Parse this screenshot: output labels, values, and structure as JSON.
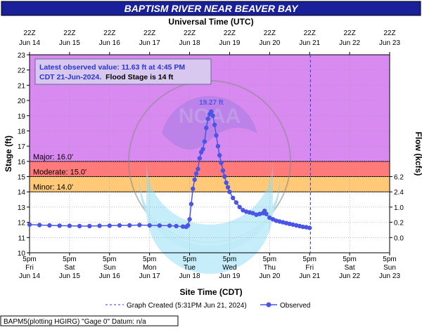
{
  "header": {
    "title": "BAPTISM RIVER NEAR BEAVER BAY",
    "subtitle": "Universal Time (UTC)"
  },
  "colors": {
    "title_bg": "#1a1f9a",
    "major": "#d88af0",
    "moderate": "#ff7a7a",
    "minor": "#ffc978",
    "observed": "#4a55e6",
    "created_line": "#3a3adc"
  },
  "info_box": {
    "line1": "Latest observed value: 11.63 ft at 4:45 PM",
    "line2a": "CDT 21-Jun-2024.",
    "line2b": "Flood Stage is 14 ft"
  },
  "legend": {
    "created": "Graph Created (5:31PM Jun 21, 2024)",
    "observed": "Observed"
  },
  "footer_note": "BAPM5(plotting HGIRG) \"Gage 0\" Datum: n/a",
  "chart_data": {
    "type": "line",
    "title": "BAPTISM RIVER NEAR BEAVER BAY",
    "xlabel": "Site Time (CDT)",
    "ylabel": "Stage (ft)",
    "y2label": "Flow (kcfs)",
    "top_xlabel": "Universal Time (UTC)",
    "ylim": [
      10,
      23
    ],
    "xlim_hours_from_jun14_5pm": [
      0,
      216
    ],
    "yticks": [
      "10",
      "11",
      "12",
      "13",
      "14",
      "15",
      "16",
      "17",
      "18",
      "19",
      "20",
      "21",
      "22",
      "23"
    ],
    "y2ticks": [
      {
        "stage": 11,
        "label": "0.0"
      },
      {
        "stage": 12,
        "label": "0.2"
      },
      {
        "stage": 13,
        "label": "1.0"
      },
      {
        "stage": 14,
        "label": "2.4"
      },
      {
        "stage": 15,
        "label": "6.2"
      }
    ],
    "bottom_ticks": [
      {
        "time": "5pm",
        "day": "Fri",
        "date": "Jun 14"
      },
      {
        "time": "5pm",
        "day": "Sat",
        "date": "Jun 15"
      },
      {
        "time": "5pm",
        "day": "Sun",
        "date": "Jun 16"
      },
      {
        "time": "5pm",
        "day": "Mon",
        "date": "Jun 17"
      },
      {
        "time": "5pm",
        "day": "Tue",
        "date": "Jun 18"
      },
      {
        "time": "5pm",
        "day": "Wed",
        "date": "Jun 19"
      },
      {
        "time": "5pm",
        "day": "Thu",
        "date": "Jun 20"
      },
      {
        "time": "5pm",
        "day": "Fri",
        "date": "Jun 21"
      },
      {
        "time": "5pm",
        "day": "Sat",
        "date": "Jun 22"
      },
      {
        "time": "5pm",
        "day": "Sun",
        "date": "Jun 23"
      }
    ],
    "top_ticks": [
      {
        "time": "22Z",
        "date": "Jun 14"
      },
      {
        "time": "22Z",
        "date": "Jun 15"
      },
      {
        "time": "22Z",
        "date": "Jun 16"
      },
      {
        "time": "22Z",
        "date": "Jun 17"
      },
      {
        "time": "22Z",
        "date": "Jun 18"
      },
      {
        "time": "22Z",
        "date": "Jun 19"
      },
      {
        "time": "22Z",
        "date": "Jun 20"
      },
      {
        "time": "22Z",
        "date": "Jun 21"
      },
      {
        "time": "22Z",
        "date": "Jun 22"
      },
      {
        "time": "22Z",
        "date": "Jun 23"
      }
    ],
    "flood_categories": [
      {
        "name": "Major",
        "label": "Major: 16.0'",
        "stage": 16.0
      },
      {
        "name": "Moderate",
        "label": "Moderate: 15.0'",
        "stage": 15.0
      },
      {
        "name": "Minor",
        "label": "Minor: 14.0'",
        "stage": 14.0
      }
    ],
    "peak_label": "19.27 ft",
    "graph_created_hours": 168.5,
    "series": [
      {
        "name": "Observed",
        "points": [
          [
            0,
            11.85
          ],
          [
            6,
            11.82
          ],
          [
            12,
            11.8
          ],
          [
            18,
            11.78
          ],
          [
            24,
            11.77
          ],
          [
            30,
            11.75
          ],
          [
            36,
            11.75
          ],
          [
            42,
            11.77
          ],
          [
            48,
            11.78
          ],
          [
            54,
            11.8
          ],
          [
            60,
            11.8
          ],
          [
            66,
            11.82
          ],
          [
            72,
            11.8
          ],
          [
            78,
            11.79
          ],
          [
            84,
            11.78
          ],
          [
            88,
            11.75
          ],
          [
            92,
            11.72
          ],
          [
            94,
            11.7
          ],
          [
            95,
            11.8
          ],
          [
            96,
            12.2
          ],
          [
            97,
            13.2
          ],
          [
            98,
            14.2
          ],
          [
            99,
            14.8
          ],
          [
            100,
            15.2
          ],
          [
            101,
            15.5
          ],
          [
            102,
            16.2
          ],
          [
            103,
            16.6
          ],
          [
            104,
            16.8
          ],
          [
            105,
            17.3
          ],
          [
            106,
            18.2
          ],
          [
            107,
            18.8
          ],
          [
            108,
            19.1
          ],
          [
            109,
            19.27
          ],
          [
            110,
            19.0
          ],
          [
            111,
            18.4
          ],
          [
            112,
            17.7
          ],
          [
            113,
            17.0
          ],
          [
            114,
            16.4
          ],
          [
            115,
            15.9
          ],
          [
            116,
            15.4
          ],
          [
            117,
            15.0
          ],
          [
            118,
            14.6
          ],
          [
            119,
            14.3
          ],
          [
            120,
            14.0
          ],
          [
            122,
            13.6
          ],
          [
            124,
            13.3
          ],
          [
            126,
            13.0
          ],
          [
            128,
            12.8
          ],
          [
            130,
            12.7
          ],
          [
            132,
            12.65
          ],
          [
            134,
            12.6
          ],
          [
            136,
            12.5
          ],
          [
            138,
            12.55
          ],
          [
            140,
            12.6
          ],
          [
            141,
            12.75
          ],
          [
            142,
            12.55
          ],
          [
            144,
            12.3
          ],
          [
            146,
            12.2
          ],
          [
            148,
            12.1
          ],
          [
            150,
            12.05
          ],
          [
            152,
            12.0
          ],
          [
            154,
            11.95
          ],
          [
            156,
            11.9
          ],
          [
            158,
            11.85
          ],
          [
            160,
            11.8
          ],
          [
            162,
            11.75
          ],
          [
            164,
            11.7
          ],
          [
            166,
            11.68
          ],
          [
            168,
            11.63
          ]
        ]
      }
    ]
  }
}
